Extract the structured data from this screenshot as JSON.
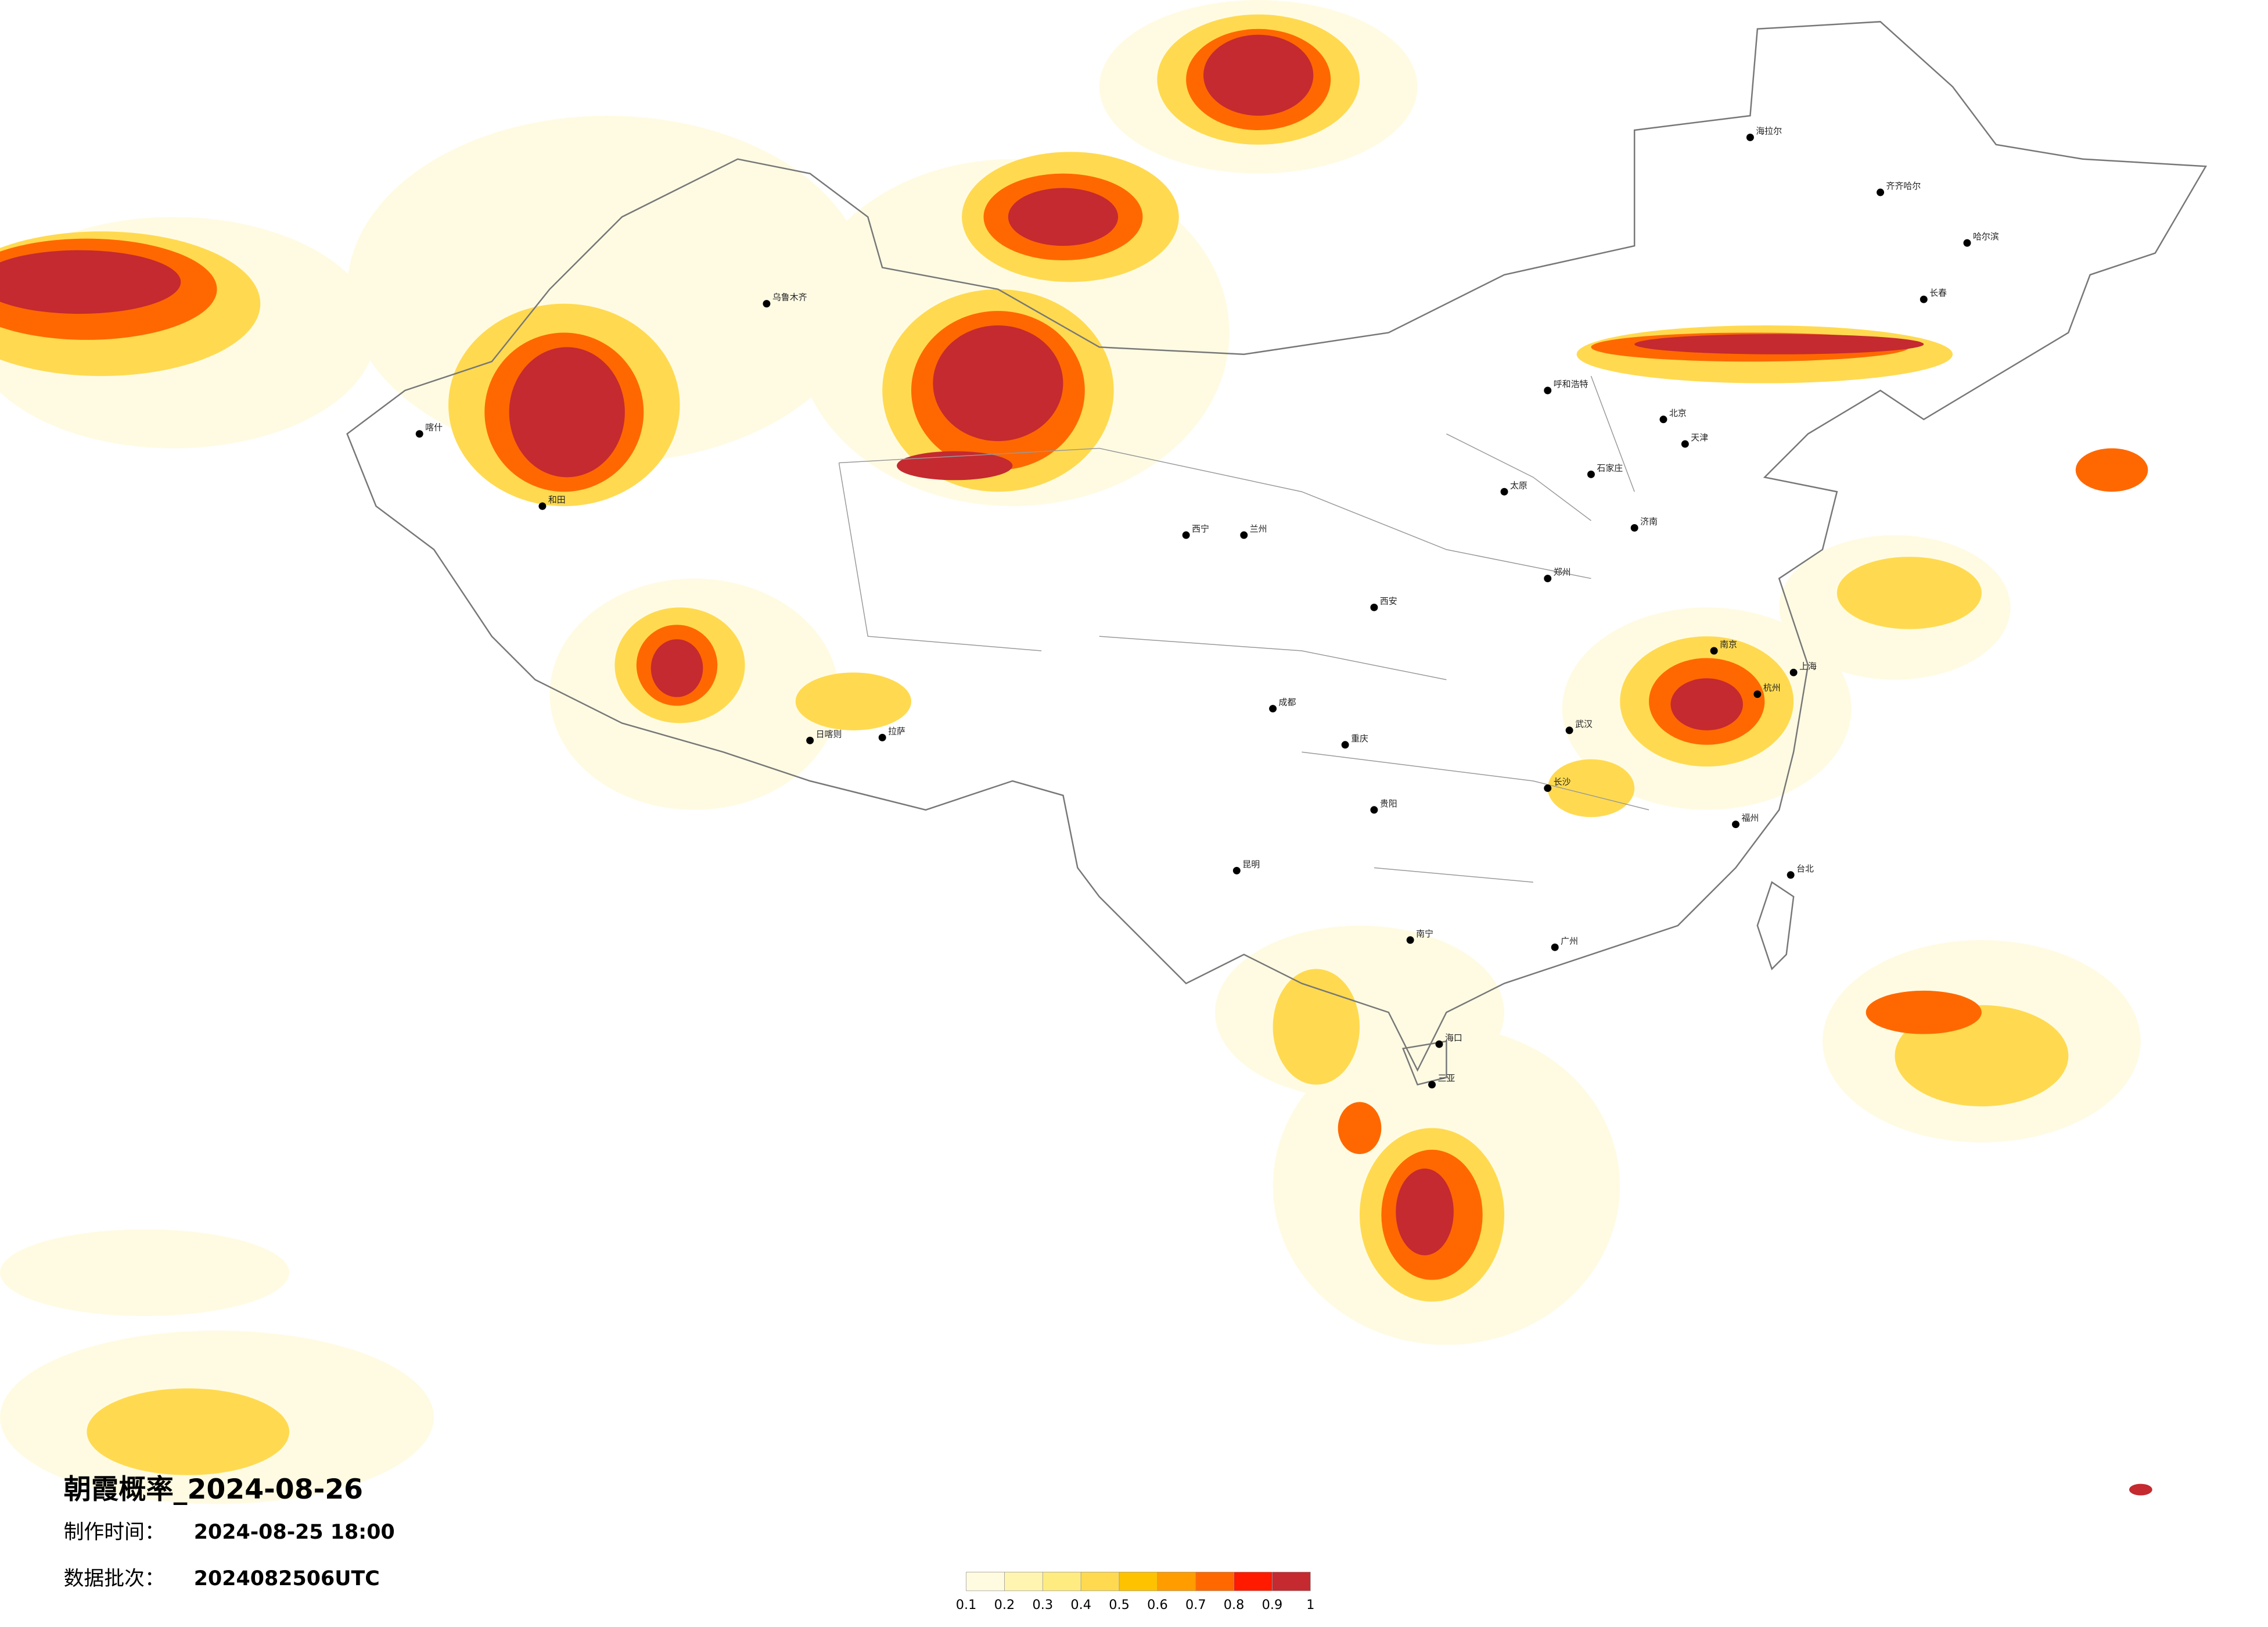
{
  "title": "朝霞概率_2024-08-26",
  "production_time": {
    "label": "制作时间：",
    "value": "2024-08-25 18:00"
  },
  "data_batch": {
    "label": "数据批次：",
    "value": "2024082506UTC"
  },
  "legend": {
    "colors": [
      "#fffbe0",
      "#fff5b0",
      "#ffec80",
      "#ffda50",
      "#ffc200",
      "#ff9c00",
      "#ff6800",
      "#ff1a00",
      "#c42a30"
    ],
    "ticks": [
      0.1,
      0.2,
      0.3,
      0.4,
      0.5,
      0.6,
      0.7,
      0.8,
      0.9,
      1
    ]
  },
  "cities": [
    "海拉尔",
    "齐齐哈尔",
    "哈尔滨",
    "长春",
    "呼和浩特",
    "北京",
    "天津",
    "石家庄",
    "太原",
    "济南",
    "郑州",
    "西安",
    "兰州",
    "西宁",
    "乌鲁木齐",
    "喀什",
    "和田",
    "拉萨",
    "日喀则",
    "成都",
    "重庆",
    "贵阳",
    "昆明",
    "南宁",
    "广州",
    "长沙",
    "武汉",
    "南京",
    "上海",
    "杭州",
    "福州",
    "台北",
    "海口",
    "三亚"
  ]
}
